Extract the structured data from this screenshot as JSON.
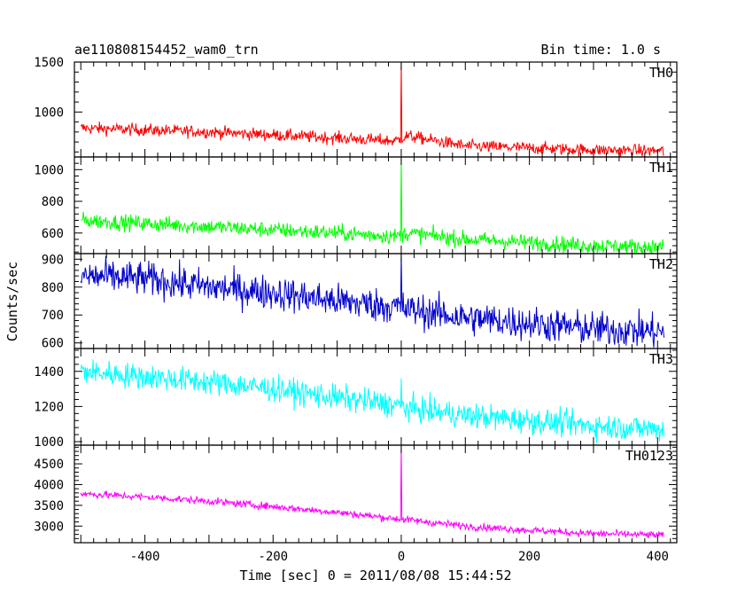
{
  "chart_data": {
    "type": "line",
    "title": "ae110808154452_wam0_trn",
    "subtitle": "Bin time: 1.0 s",
    "xlabel": "Time [sec] 0 = 2011/08/08 15:44:52",
    "ylabel": "Counts/sec",
    "xlim": [
      -510,
      430
    ],
    "x_ticks": [
      -400,
      -200,
      0,
      200,
      400
    ],
    "grid": false,
    "panels": [
      {
        "name": "TH0",
        "color": "#ff0000",
        "ylim": [
          550,
          1500
        ],
        "y_ticks": [
          1000,
          1500
        ],
        "x": [
          -500,
          -400,
          -300,
          -200,
          -100,
          -10,
          0,
          10,
          100,
          200,
          300,
          410
        ],
        "y": [
          840,
          820,
          800,
          770,
          740,
          710,
          1500,
          760,
          660,
          640,
          620,
          610
        ],
        "noise": 55,
        "spike": 1500
      },
      {
        "name": "TH1",
        "color": "#00ff00",
        "ylim": [
          470,
          1080
        ],
        "y_ticks": [
          600,
          800,
          1000
        ],
        "x": [
          -500,
          -400,
          -300,
          -200,
          -100,
          -10,
          0,
          10,
          100,
          200,
          300,
          410
        ],
        "y": [
          680,
          660,
          640,
          620,
          600,
          580,
          1080,
          600,
          560,
          540,
          520,
          510
        ],
        "noise": 45,
        "spike": 1080
      },
      {
        "name": "TH2",
        "color": "#0000cc",
        "ylim": [
          580,
          920
        ],
        "y_ticks": [
          600,
          700,
          800,
          900
        ],
        "x": [
          -500,
          -400,
          -300,
          -200,
          -100,
          -10,
          0,
          10,
          100,
          200,
          300,
          410
        ],
        "y": [
          840,
          830,
          800,
          780,
          750,
          730,
          920,
          720,
          690,
          670,
          650,
          640
        ],
        "noise": 55,
        "spike": 920
      },
      {
        "name": "TH3",
        "color": "#00ffff",
        "ylim": [
          980,
          1530
        ],
        "y_ticks": [
          1000,
          1200,
          1400
        ],
        "x": [
          -500,
          -400,
          -300,
          -200,
          -100,
          -10,
          0,
          10,
          100,
          200,
          300,
          410
        ],
        "y": [
          1400,
          1370,
          1340,
          1300,
          1250,
          1210,
          1360,
          1190,
          1150,
          1120,
          1090,
          1070
        ],
        "noise": 65,
        "spike": 1360
      },
      {
        "name": "TH0123",
        "color": "#ff00ff",
        "ylim": [
          2600,
          4950
        ],
        "y_ticks": [
          3000,
          3500,
          4000,
          4500
        ],
        "x": [
          -500,
          -400,
          -300,
          -200,
          -100,
          -10,
          0,
          10,
          100,
          200,
          300,
          410
        ],
        "y": [
          3780,
          3700,
          3600,
          3470,
          3330,
          3180,
          4950,
          3150,
          3000,
          2900,
          2820,
          2780
        ],
        "noise": 80,
        "spike": 4950
      }
    ]
  }
}
